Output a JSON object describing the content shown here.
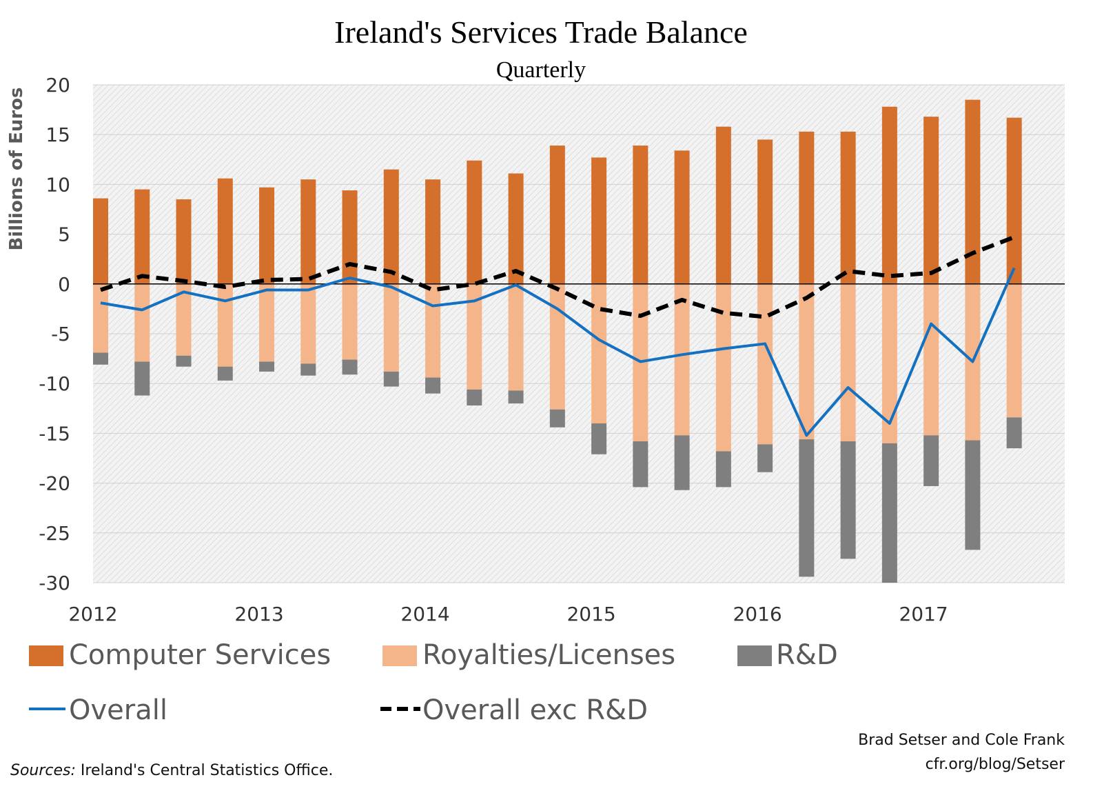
{
  "chart_data": {
    "type": "bar",
    "title": "Ireland's Services Trade Balance",
    "subtitle": "Quarterly",
    "ylabel": "Billions of Euros",
    "xlabel": "",
    "ylim": [
      -30,
      20
    ],
    "yticks": [
      "20",
      "15",
      "10",
      "5",
      "0",
      "-5",
      "-10",
      "-15",
      "-20",
      "-25",
      "-30"
    ],
    "xticks": [
      "2012",
      "2013",
      "2014",
      "2015",
      "2016",
      "2017"
    ],
    "grid": true,
    "legend_position": "bottom",
    "x": [
      "2012Q1",
      "2012Q2",
      "2012Q3",
      "2012Q4",
      "2013Q1",
      "2013Q2",
      "2013Q3",
      "2013Q4",
      "2014Q1",
      "2014Q2",
      "2014Q3",
      "2014Q4",
      "2015Q1",
      "2015Q2",
      "2015Q3",
      "2015Q4",
      "2016Q1",
      "2016Q2",
      "2016Q3",
      "2016Q4",
      "2017Q1",
      "2017Q2",
      "2017Q3"
    ],
    "series": [
      {
        "name": "Computer Services",
        "type": "bar",
        "color": "#D4702C",
        "values": [
          8.6,
          9.5,
          8.5,
          10.6,
          9.7,
          10.5,
          9.4,
          11.5,
          10.5,
          12.4,
          11.1,
          13.9,
          12.7,
          13.9,
          13.4,
          15.8,
          14.5,
          15.3,
          15.3,
          17.8,
          16.8,
          18.5,
          16.7
        ]
      },
      {
        "name": "Royalties/Licenses",
        "type": "bar",
        "color": "#F4B58A",
        "values": [
          -6.9,
          -7.8,
          -7.2,
          -8.3,
          -7.8,
          -8.0,
          -7.6,
          -8.8,
          -9.4,
          -10.6,
          -10.7,
          -12.6,
          -14.0,
          -15.8,
          -15.2,
          -16.8,
          -16.1,
          -15.6,
          -15.8,
          -16.0,
          -15.2,
          -15.7,
          -13.4
        ]
      },
      {
        "name": "R&D",
        "type": "bar",
        "color": "#7F7F7F",
        "values": [
          -1.2,
          -3.4,
          -1.1,
          -1.4,
          -1.0,
          -1.2,
          -1.5,
          -1.5,
          -1.6,
          -1.6,
          -1.3,
          -1.8,
          -3.1,
          -4.6,
          -5.5,
          -3.6,
          -2.8,
          -13.8,
          -11.8,
          -14.0,
          -5.1,
          -11.0,
          -3.1
        ]
      },
      {
        "name": "Overall",
        "type": "line",
        "color": "#1470C0",
        "values": [
          -1.9,
          -2.6,
          -0.8,
          -1.7,
          -0.6,
          -0.6,
          0.6,
          -0.3,
          -2.2,
          -1.7,
          -0.1,
          -2.5,
          -5.6,
          -7.8,
          -7.1,
          -6.5,
          -6.0,
          -15.2,
          -10.4,
          -14.0,
          -4.0,
          -7.8,
          1.6
        ]
      },
      {
        "name": "Overall exc R&D",
        "type": "line",
        "dashed": true,
        "color": "#000000",
        "values": [
          -0.6,
          0.8,
          0.3,
          -0.3,
          0.4,
          0.5,
          2.0,
          1.2,
          -0.6,
          0.0,
          1.3,
          -0.5,
          -2.5,
          -3.2,
          -1.6,
          -2.9,
          -3.3,
          -1.4,
          1.3,
          0.8,
          1.1,
          3.1,
          4.7
        ]
      }
    ]
  },
  "credits": {
    "authors": "Brad Setser and Cole Frank",
    "url": "cfr.org/blog/Setser",
    "sources_label": "Sources:",
    "sources_text": " Ireland's Central Statistics Office."
  }
}
